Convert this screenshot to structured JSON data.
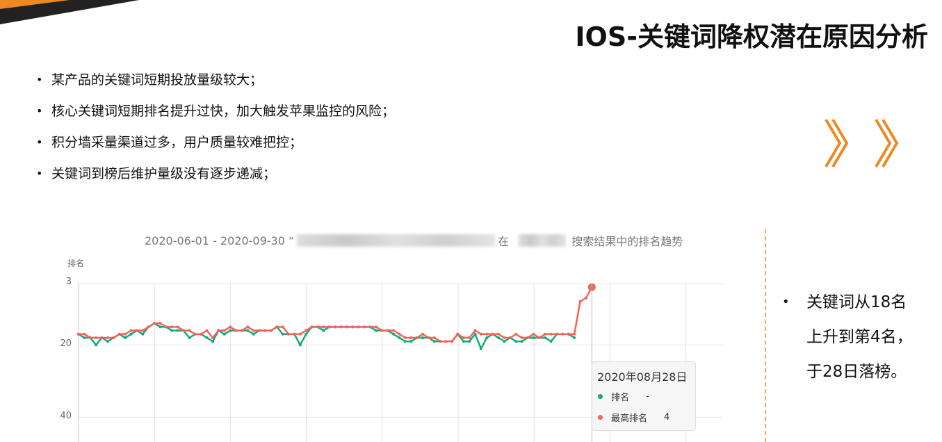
{
  "slide": {
    "title": "IOS-关键词降权潜在原因分析",
    "bullets": [
      "某产品的关键词短期投放量级较大；",
      "核心关键词短期排名提升过快，加大触发苹果监控的风险；",
      "积分墙采量渠道过多，用户质量较难把控；",
      "关键词到榜后维护量级没有逐步递减；"
    ],
    "arrow_icon": "double-chevron-right-icon",
    "accent_color": "#ec8a21",
    "side_note": [
      "关键词从18名",
      "上升到第4名，",
      "于28日落榜。"
    ]
  },
  "chart_data": {
    "type": "line",
    "title_parts": [
      "2020-06-01 - 2020-09-30 “",
      "在",
      "搜索结果中的排名趋势"
    ],
    "ylabel": "排名",
    "y_ticks": [
      "3",
      "20",
      "40"
    ],
    "y_inverted": true,
    "ylim": [
      3,
      40
    ],
    "x_start": "2020-06-01",
    "x_end": "2020-09-30",
    "grid": true,
    "series": [
      {
        "name": "排名",
        "color": "#13a97b",
        "values": [
          17,
          18,
          18,
          20,
          18,
          19,
          18,
          17,
          18,
          17,
          16,
          17,
          15,
          14,
          15,
          15,
          16,
          16,
          16,
          18,
          17,
          17,
          18,
          19,
          16,
          17,
          16,
          16,
          16,
          16,
          17,
          16,
          16,
          16,
          15,
          17,
          17,
          17,
          20,
          17,
          15,
          15,
          16,
          15,
          15,
          15,
          15,
          15,
          15,
          15,
          15,
          16,
          16,
          16,
          17,
          18,
          19,
          19,
          18,
          18,
          18,
          19,
          19,
          19,
          19,
          17,
          19,
          19,
          17,
          21,
          18,
          17,
          18,
          19,
          18,
          19,
          19,
          18,
          18,
          18,
          18,
          19,
          17,
          17,
          17,
          18,
          null,
          null,
          null
        ]
      },
      {
        "name": "最高排名",
        "color": "#f0645a",
        "values": [
          17,
          17,
          18,
          18,
          18,
          18,
          18,
          17,
          17,
          16,
          16,
          16,
          15,
          14,
          14,
          15,
          15,
          15,
          16,
          16,
          17,
          17,
          16,
          18,
          16,
          16,
          15,
          16,
          16,
          15,
          16,
          16,
          16,
          16,
          15,
          15,
          17,
          17,
          17,
          16,
          15,
          15,
          15,
          15,
          15,
          15,
          15,
          15,
          15,
          15,
          15,
          15,
          16,
          16,
          16,
          17,
          18,
          18,
          18,
          17,
          18,
          18,
          19,
          19,
          19,
          17,
          18,
          18,
          16,
          17,
          17,
          17,
          17,
          18,
          18,
          17,
          18,
          18,
          17,
          18,
          17,
          17,
          17,
          17,
          17,
          17,
          8,
          7,
          4
        ]
      }
    ],
    "tooltip": {
      "date": "2020年08月28日",
      "rows": [
        {
          "label": "排名",
          "value": "-"
        },
        {
          "label": "最高排名",
          "value": "4"
        }
      ]
    }
  }
}
